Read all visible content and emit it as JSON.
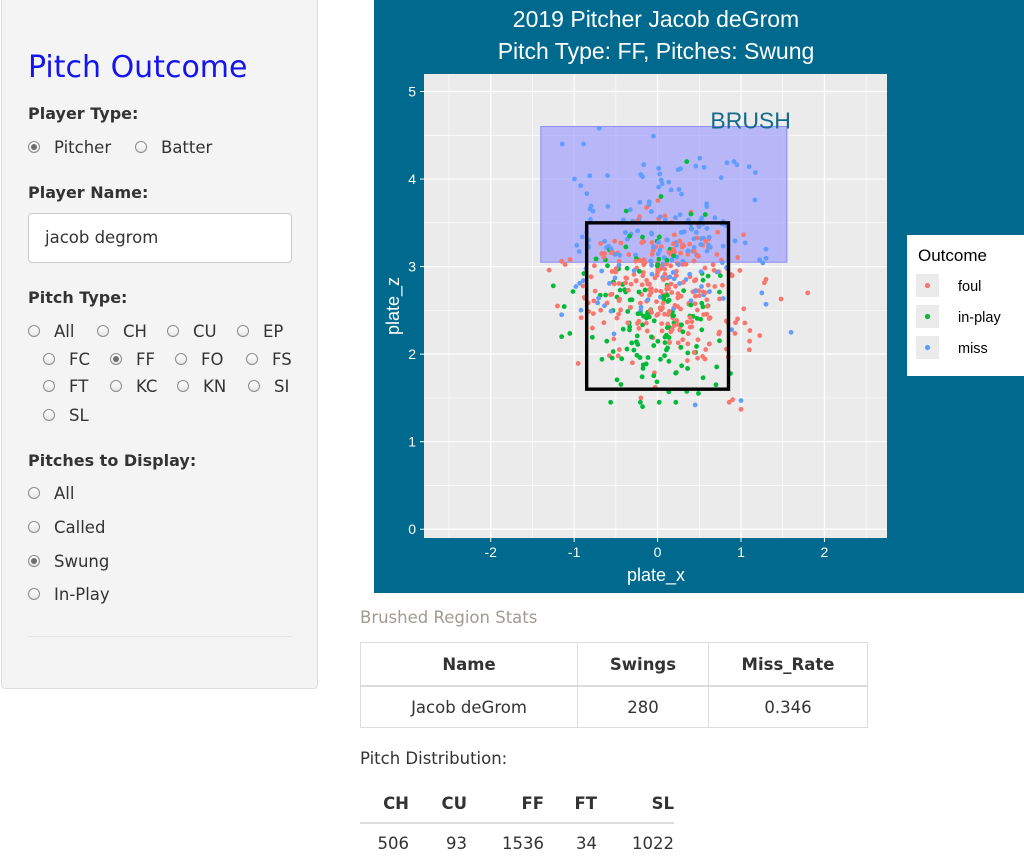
{
  "sidebar": {
    "title": "Pitch Outcome",
    "player_type": {
      "label": "Player Type:",
      "options": [
        "Pitcher",
        "Batter"
      ],
      "selected": "Pitcher"
    },
    "player_name": {
      "label": "Player Name:",
      "value": "jacob degrom"
    },
    "pitch_type": {
      "label": "Pitch Type:",
      "options": [
        "All",
        "CH",
        "CU",
        "EP",
        "FC",
        "FF",
        "FO",
        "FS",
        "FT",
        "KC",
        "KN",
        "SI",
        "SL"
      ],
      "selected": "FF"
    },
    "pitches_to_display": {
      "label": "Pitches to Display:",
      "options": [
        "All",
        "Called",
        "Swung",
        "In-Play"
      ],
      "selected": "Swung"
    }
  },
  "colors": {
    "plot_background": "#006a8e",
    "panel": "#ebebeb",
    "brush_fill": "#9b9bff",
    "foul": "#f8766d",
    "in_play": "#00ba38",
    "miss": "#619cff",
    "sidebar_title": "#1414f0"
  },
  "chart_data": {
    "type": "scatter",
    "title_line1": "2019 Pitcher Jacob deGrom",
    "title_line2": "Pitch Type: FF, Pitches: Swung",
    "xlabel": "plate_x",
    "ylabel": "plate_z",
    "xlim": [
      -2.8,
      2.75
    ],
    "ylim": [
      -0.1,
      5.2
    ],
    "xticks": [
      -2,
      -1,
      0,
      1,
      2
    ],
    "yticks": [
      0,
      1,
      2,
      3,
      4,
      5
    ],
    "grid": true,
    "legend": {
      "title": "Outcome",
      "position": "right",
      "entries": [
        "foul",
        "in-play",
        "miss"
      ]
    },
    "strike_zone": {
      "x": [
        -0.85,
        0.85
      ],
      "z": [
        1.6,
        3.5
      ]
    },
    "brush": {
      "label": "BRUSH",
      "x": [
        -1.4,
        1.55
      ],
      "z": [
        3.05,
        4.6
      ]
    },
    "series": [
      {
        "name": "foul",
        "color": "#f8766d",
        "n": 260,
        "x_mean": 0.05,
        "x_sd": 0.5,
        "z_mean": 2.75,
        "z_sd": 0.42,
        "points": [
          [
            1.8,
            2.7
          ],
          [
            1.0,
            1.37
          ],
          [
            -1.3,
            2.96
          ],
          [
            1.48,
            2.63
          ],
          [
            -0.2,
            1.5
          ],
          [
            0.9,
            1.48
          ],
          [
            -1.2,
            2.55
          ],
          [
            1.1,
            2.05
          ]
        ]
      },
      {
        "name": "in-play",
        "color": "#00ba38",
        "n": 140,
        "x_mean": -0.05,
        "x_sd": 0.45,
        "z_mean": 2.45,
        "z_sd": 0.45,
        "points": [
          [
            -0.18,
            1.4
          ],
          [
            0.02,
            1.45
          ],
          [
            -1.25,
            2.78
          ],
          [
            -1.15,
            2.2
          ],
          [
            0.7,
            1.65
          ],
          [
            0.35,
            4.2
          ],
          [
            0.4,
            3.6
          ]
        ]
      },
      {
        "name": "miss",
        "color": "#619cff",
        "n": 160,
        "x_mean": 0.05,
        "x_sd": 0.55,
        "z_mean": 3.4,
        "z_sd": 0.5,
        "points": [
          [
            -0.7,
            4.58
          ],
          [
            -0.05,
            4.49
          ],
          [
            1.6,
            2.25
          ],
          [
            0.45,
            1.42
          ],
          [
            1.0,
            1.47
          ],
          [
            1.3,
            3.2
          ],
          [
            1.25,
            2.7
          ]
        ]
      }
    ]
  },
  "stats": {
    "heading": "Brushed Region Stats",
    "columns": [
      "Name",
      "Swings",
      "Miss_Rate"
    ],
    "rows": [
      [
        "Jacob deGrom",
        "280",
        "0.346"
      ]
    ]
  },
  "distribution": {
    "heading": "Pitch Distribution:",
    "columns": [
      "CH",
      "CU",
      "FF",
      "FT",
      "SL"
    ],
    "values": [
      "506",
      "93",
      "1536",
      "34",
      "1022"
    ]
  }
}
